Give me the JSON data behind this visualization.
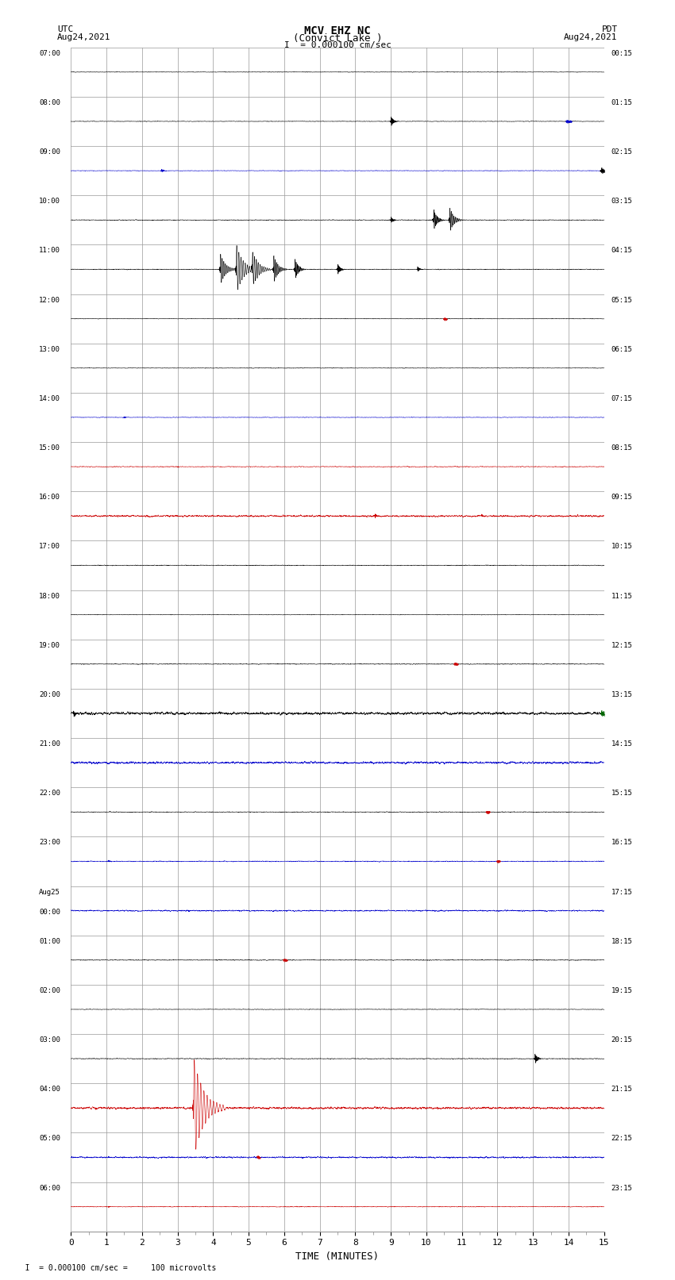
{
  "title_line1": "MCV EHZ NC",
  "title_line2": "(Convict Lake )",
  "title_scale": "I  = 0.000100 cm/sec",
  "label_utc": "UTC",
  "label_date_left": "Aug24,2021",
  "label_pdt": "PDT",
  "label_date_right": "Aug24,2021",
  "xlabel": "TIME (MINUTES)",
  "footnote": "    I  = 0.000100 cm/sec =     100 microvolts",
  "xmin": 0,
  "xmax": 15,
  "n_rows": 24,
  "bg_color": "#ffffff",
  "grid_color": "#aaaaaa",
  "seed": 12345,
  "left_labels_utc": [
    "07:00",
    "08:00",
    "09:00",
    "10:00",
    "11:00",
    "12:00",
    "13:00",
    "14:00",
    "15:00",
    "16:00",
    "17:00",
    "18:00",
    "19:00",
    "20:00",
    "21:00",
    "22:00",
    "23:00",
    "Aug25\n00:00",
    "01:00",
    "02:00",
    "03:00",
    "04:00",
    "05:00",
    "06:00"
  ],
  "right_labels_pdt": [
    "00:15",
    "01:15",
    "02:15",
    "03:15",
    "04:15",
    "05:15",
    "06:15",
    "07:15",
    "08:15",
    "09:15",
    "10:15",
    "11:15",
    "12:15",
    "13:15",
    "14:15",
    "15:15",
    "16:15",
    "17:15",
    "18:15",
    "19:15",
    "20:15",
    "21:15",
    "22:15",
    "23:15"
  ],
  "row_colors": [
    [
      "k",
      "k",
      "k",
      "k"
    ],
    [
      "k",
      "b",
      "k",
      "k"
    ],
    [
      "b",
      "k",
      "k",
      "k"
    ],
    [
      "k",
      "k",
      "r",
      "k"
    ],
    [
      "k",
      "k",
      "k",
      "k"
    ],
    [
      "k",
      "r",
      "k",
      "k"
    ],
    [
      "k",
      "k",
      "k",
      "k"
    ],
    [
      "b",
      "k",
      "k",
      "k"
    ],
    [
      "r",
      "k",
      "k",
      "k"
    ],
    [
      "r",
      "r",
      "r",
      "r"
    ],
    [
      "k",
      "k",
      "k",
      "k"
    ],
    [
      "k",
      "k",
      "k",
      "k"
    ],
    [
      "k",
      "r",
      "k",
      "k"
    ],
    [
      "k",
      "b",
      "r",
      "g"
    ],
    [
      "b",
      "b",
      "b",
      "b"
    ],
    [
      "k",
      "r",
      "k",
      "k"
    ],
    [
      "b",
      "k",
      "r",
      "k"
    ],
    [
      "b",
      "k",
      "k",
      "k"
    ],
    [
      "k",
      "r",
      "k",
      "k"
    ],
    [
      "k",
      "k",
      "k",
      "k"
    ],
    [
      "k",
      "k",
      "k",
      "k"
    ],
    [
      "r",
      "r",
      "r",
      "r"
    ],
    [
      "b",
      "r",
      "k",
      "k"
    ],
    [
      "r",
      "k",
      "k",
      "k"
    ]
  ],
  "row_noise_base": [
    0.006,
    0.006,
    0.006,
    0.008,
    0.008,
    0.006,
    0.006,
    0.006,
    0.008,
    0.02,
    0.008,
    0.006,
    0.008,
    0.03,
    0.025,
    0.008,
    0.01,
    0.015,
    0.008,
    0.006,
    0.008,
    0.025,
    0.018,
    0.008
  ],
  "color_map": {
    "k": "#000000",
    "b": "#0000cc",
    "r": "#cc0000",
    "g": "#006600"
  }
}
